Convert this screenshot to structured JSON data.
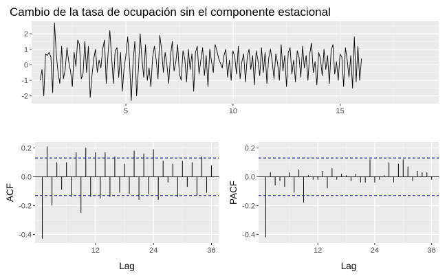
{
  "figure": {
    "title": "Cambio de la tasa de ocupación sin el componente estacional"
  },
  "chart_data": [
    {
      "type": "line",
      "panel": "time-series",
      "title": "Cambio de la tasa de ocupación sin el componente estacional",
      "xlabel": "",
      "ylabel": "",
      "xlim": [
        0.6,
        19.6
      ],
      "ylim": [
        -2.5,
        2.8
      ],
      "x_ticks": [
        5,
        10,
        15
      ],
      "y_ticks": [
        -2,
        -1,
        0,
        1,
        2
      ],
      "x_tick_labels": [
        "5",
        "10",
        "15"
      ],
      "y_tick_labels": [
        "-2",
        "-1",
        "0",
        "1",
        "2"
      ],
      "x_start": 1.0,
      "x_step": 0.0833,
      "values": [
        -1.0,
        -0.3,
        -2.0,
        0.7,
        0.6,
        0.8,
        0.5,
        -1.8,
        2.7,
        0.7,
        -0.5,
        -1.2,
        1.2,
        -0.9,
        -0.3,
        1.1,
        0.2,
        -0.4,
        -1.4,
        0.8,
        -0.1,
        1.6,
        1.3,
        -0.9,
        -0.6,
        1.5,
        -0.5,
        1.2,
        -2.1,
        -0.7,
        0.4,
        1.0,
        -0.5,
        0.3,
        -0.2,
        1.0,
        1.6,
        -1.2,
        0.7,
        2.2,
        0.5,
        -1.2,
        0.9,
        1.1,
        -0.8,
        0.8,
        -1.7,
        -0.2,
        0.6,
        1.8,
        0.3,
        -2.3,
        0.1,
        1.5,
        -2.0,
        -0.3,
        2.0,
        0.4,
        -0.8,
        1.3,
        -1.0,
        -0.2,
        -1.4,
        0.5,
        1.2,
        0.3,
        -0.9,
        1.9,
        1.0,
        -0.5,
        0.8,
        0.0,
        -1.2,
        0.6,
        1.5,
        -0.4,
        0.2,
        1.3,
        -0.6,
        -1.0,
        0.9,
        0.4,
        -1.1,
        1.0,
        -0.3,
        0.7,
        -1.7,
        0.8,
        1.2,
        -0.6,
        0.3,
        1.1,
        -0.7,
        0.6,
        -1.4,
        1.0,
        0.2,
        -0.5,
        1.3,
        0.9,
        0.4,
        0.1,
        -0.2,
        0.6,
        1.0,
        -0.8,
        0.3,
        -1.0,
        0.9,
        0.5,
        -0.6,
        1.2,
        -0.9,
        0.2,
        0.7,
        -1.1,
        0.5,
        1.0,
        -0.3,
        0.6,
        -1.3,
        0.9,
        0.3,
        -0.7,
        1.1,
        -0.5,
        0.8,
        -1.2,
        0.4,
        1.0,
        0.2,
        -0.9,
        0.7,
        0.1,
        -1.0,
        1.3,
        -0.4,
        0.6,
        -1.4,
        0.8,
        1.1,
        -0.6,
        0.3,
        -1.1,
        0.9,
        0.5,
        -0.8,
        1.2,
        -0.2,
        0.6,
        -1.0,
        0.7,
        1.4,
        -0.5,
        0.2,
        -1.3,
        0.8,
        0.4,
        -0.7,
        1.0,
        -0.3,
        0.6,
        -1.2,
        0.9,
        1.3,
        -0.6,
        0.2,
        -1.0,
        0.7,
        0.5,
        -1.4,
        1.1,
        0.3,
        -0.8,
        0.6,
        -1.5,
        1.8,
        -1.1,
        1.2,
        -1.0,
        0.4
      ],
      "grid": true,
      "line_color": "#000000",
      "panel_background": "#ebebeb"
    },
    {
      "type": "bar",
      "panel": "acf",
      "title": "",
      "xlabel": "Lag",
      "ylabel": "ACF",
      "xlim": [
        -0.5,
        37.5
      ],
      "ylim": [
        -0.46,
        0.24
      ],
      "x_ticks": [
        12,
        24,
        36
      ],
      "y_ticks": [
        -0.4,
        -0.2,
        0.0,
        0.2
      ],
      "x_tick_labels": [
        "12",
        "24",
        "36"
      ],
      "y_tick_labels": [
        "-0.4",
        "-0.2",
        "0.0",
        "0.2"
      ],
      "lags": [
        1,
        2,
        3,
        4,
        5,
        6,
        7,
        8,
        9,
        10,
        11,
        12,
        13,
        14,
        15,
        16,
        17,
        18,
        19,
        20,
        21,
        22,
        23,
        24,
        25,
        26,
        27,
        28,
        29,
        30,
        31,
        32,
        33,
        34,
        35,
        36
      ],
      "values": [
        -0.43,
        0.21,
        -0.2,
        0.1,
        -0.09,
        0.1,
        -0.14,
        0.17,
        -0.25,
        0.2,
        -0.14,
        0.17,
        -0.15,
        0.17,
        -0.14,
        0.14,
        -0.11,
        0.09,
        -0.12,
        0.18,
        -0.16,
        0.16,
        -0.12,
        0.19,
        -0.16,
        0.11,
        -0.04,
        0.09,
        -0.14,
        0.11,
        -0.07,
        0.1,
        -0.13,
        0.14,
        -0.11,
        0.08
      ],
      "confidence_band": 0.13,
      "band_color": "#00008b",
      "grid": true
    },
    {
      "type": "bar",
      "panel": "pacf",
      "title": "",
      "xlabel": "Lag",
      "ylabel": "PACF",
      "xlim": [
        -0.5,
        37.5
      ],
      "ylim": [
        -0.46,
        0.24
      ],
      "x_ticks": [
        12,
        24,
        36
      ],
      "y_ticks": [
        -0.4,
        -0.2,
        0.0,
        0.2
      ],
      "x_tick_labels": [
        "12",
        "24",
        "36"
      ],
      "y_tick_labels": [
        "-0.4",
        "-0.2",
        "0.0",
        "0.2"
      ],
      "lags": [
        1,
        2,
        3,
        4,
        5,
        6,
        7,
        8,
        9,
        10,
        11,
        12,
        13,
        14,
        15,
        16,
        17,
        18,
        19,
        20,
        21,
        22,
        23,
        24,
        25,
        26,
        27,
        28,
        29,
        30,
        31,
        32,
        33,
        34,
        35,
        36
      ],
      "values": [
        -0.42,
        0.03,
        -0.06,
        -0.03,
        -0.07,
        0.03,
        -0.11,
        0.05,
        -0.18,
        0.01,
        -0.02,
        -0.02,
        0.04,
        -0.08,
        0.06,
        -0.02,
        0.02,
        0.01,
        -0.03,
        0.02,
        -0.04,
        -0.04,
        0.12,
        -0.04,
        -0.02,
        0.01,
        0.1,
        -0.04,
        0.09,
        0.12,
        0.07,
        -0.03,
        0.04,
        0.03,
        0.03,
        -0.02
      ],
      "confidence_band": 0.13,
      "band_color": "#00008b",
      "grid": true
    }
  ]
}
